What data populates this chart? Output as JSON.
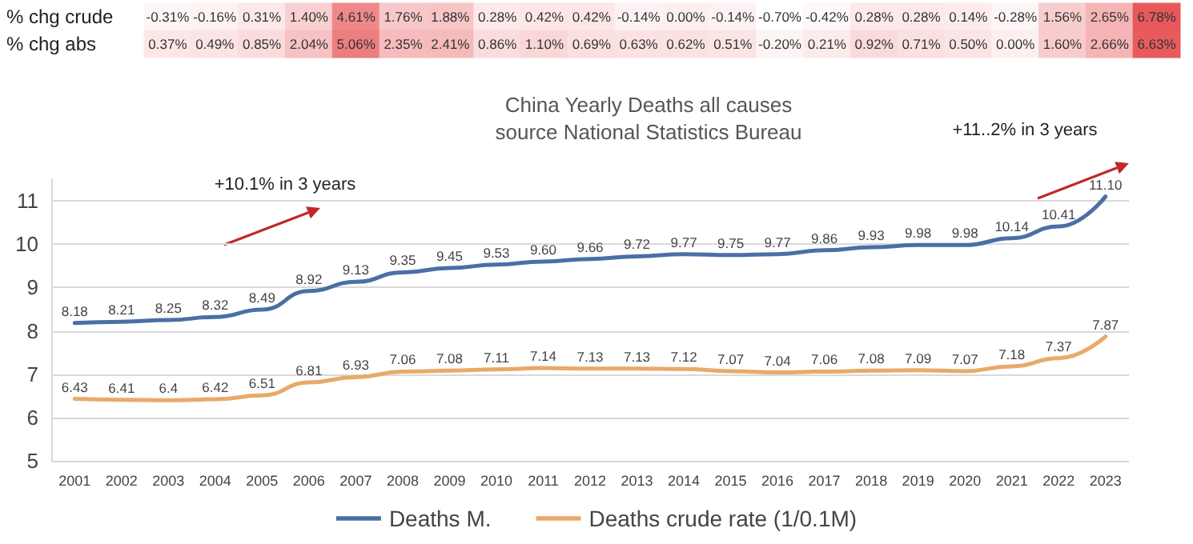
{
  "chart_data": [
    {
      "type": "heatmap",
      "categories": [
        null,
        null,
        null,
        null,
        null,
        null,
        null,
        null,
        null,
        null,
        null,
        null,
        null,
        null,
        null,
        null,
        null,
        null,
        null,
        null,
        null,
        null
      ],
      "y_categories": [
        "% chg crude",
        "% chg abs"
      ],
      "cells": [
        [
          -0.31,
          -0.16,
          0.31,
          1.4,
          4.61,
          1.76,
          1.88,
          0.28,
          0.42,
          0.42,
          -0.14,
          0.0,
          -0.14,
          -0.7,
          -0.42,
          0.28,
          0.28,
          0.14,
          -0.28,
          1.56,
          2.65,
          6.78
        ],
        [
          0.37,
          0.49,
          0.85,
          2.04,
          5.06,
          2.35,
          2.41,
          0.86,
          1.1,
          0.69,
          0.63,
          0.62,
          0.51,
          -0.2,
          0.21,
          0.92,
          0.71,
          0.5,
          0.0,
          1.6,
          2.66,
          6.63
        ]
      ],
      "cell_labels": [
        [
          "-0.31%",
          "-0.16%",
          "0.31%",
          "1.40%",
          "4.61%",
          "1.76%",
          "1.88%",
          "0.28%",
          "0.42%",
          "0.42%",
          "-0.14%",
          "0.00%",
          "-0.14%",
          "-0.70%",
          "-0.42%",
          "0.28%",
          "0.28%",
          "0.14%",
          "-0.28%",
          "1.56%",
          "2.65%",
          "6.78%"
        ],
        [
          "0.37%",
          "0.49%",
          "0.85%",
          "2.04%",
          "5.06%",
          "2.35%",
          "2.41%",
          "0.86%",
          "1.10%",
          "0.69%",
          "0.63%",
          "0.62%",
          "0.51%",
          "-0.20%",
          "0.21%",
          "0.92%",
          "0.71%",
          "0.50%",
          "0.00%",
          "1.60%",
          "2.66%",
          "6.63%"
        ]
      ]
    },
    {
      "type": "line",
      "title": "China Yearly Deaths all causes",
      "subtitle": "source National Statistics Bureau",
      "annotations": [
        "+10.1% in 3 years",
        "+11..2% in 3 years"
      ],
      "categories": [
        "2001",
        "2002",
        "2003",
        "2004",
        "2005",
        "2006",
        "2007",
        "2008",
        "2009",
        "2010",
        "2011",
        "2012",
        "2013",
        "2014",
        "2015",
        "2016",
        "2017",
        "2018",
        "2019",
        "2020",
        "2021",
        "2022",
        "2023"
      ],
      "series": [
        {
          "name": "Deaths M.",
          "color": "#4a6fa5",
          "values": [
            8.18,
            8.21,
            8.25,
            8.32,
            8.49,
            8.92,
            9.13,
            9.35,
            9.45,
            9.53,
            9.6,
            9.66,
            9.72,
            9.77,
            9.75,
            9.77,
            9.86,
            9.93,
            9.98,
            9.98,
            10.14,
            10.41,
            11.1
          ],
          "value_labels": [
            "8.18",
            "8.21",
            "8.25",
            "8.32",
            "8.49",
            "8.92",
            "9.13",
            "9.35",
            "9.45",
            "9.53",
            "9.60",
            "9.66",
            "9.72",
            "9.77",
            "9.75",
            "9.77",
            "9.86",
            "9.93",
            "9.98",
            "9.98",
            "10.14",
            "10.41",
            "11.10"
          ]
        },
        {
          "name": "Deaths crude rate (1/0.1M)",
          "color": "#e8a96a",
          "values": [
            6.43,
            6.41,
            6.4,
            6.42,
            6.51,
            6.81,
            6.93,
            7.06,
            7.08,
            7.11,
            7.14,
            7.13,
            7.13,
            7.12,
            7.07,
            7.04,
            7.06,
            7.08,
            7.09,
            7.07,
            7.18,
            7.37,
            7.87
          ],
          "value_labels": [
            "6.43",
            "6.41",
            "6.4",
            "6.42",
            "6.51",
            "6.81",
            "6.93",
            "7.06",
            "7.08",
            "7.11",
            "7.14",
            "7.13",
            "7.13",
            "7.12",
            "7.07",
            "7.04",
            "7.06",
            "7.08",
            "7.09",
            "7.07",
            "7.18",
            "7.37",
            "7.87"
          ]
        }
      ],
      "ylim": [
        5,
        11.5
      ],
      "yticks": [
        5,
        6,
        7,
        8,
        9,
        10,
        11
      ],
      "grid": "y",
      "legend": "bottom",
      "marker": "none"
    }
  ]
}
